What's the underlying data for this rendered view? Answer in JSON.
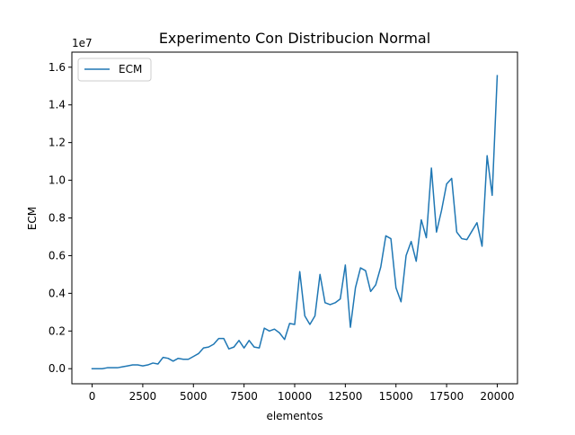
{
  "chart_data": {
    "type": "line",
    "title": "Experimento Con Distribucion Normal",
    "xlabel": "elementos",
    "ylabel": "ECM",
    "y_offset_label": "1e7",
    "xlim": [
      -1000,
      21000
    ],
    "ylim": [
      -800000,
      16800000
    ],
    "x_ticks": [
      0,
      2500,
      5000,
      7500,
      10000,
      12500,
      15000,
      17500,
      20000
    ],
    "x_tick_labels": [
      "0",
      "2500",
      "5000",
      "7500",
      "10000",
      "12500",
      "15000",
      "17500",
      "20000"
    ],
    "y_ticks": [
      0,
      2000000,
      4000000,
      6000000,
      8000000,
      10000000,
      12000000,
      14000000,
      16000000
    ],
    "y_tick_labels": [
      "0.0",
      "0.2",
      "0.4",
      "0.6",
      "0.8",
      "1.0",
      "1.2",
      "1.4",
      "1.6"
    ],
    "grid": false,
    "legend_position": "top-left",
    "series": [
      {
        "name": "ECM",
        "color": "#1f77b4",
        "x": [
          0,
          250,
          500,
          750,
          1000,
          1250,
          1500,
          1750,
          2000,
          2250,
          2500,
          2750,
          3000,
          3250,
          3500,
          3750,
          4000,
          4250,
          4500,
          4750,
          5000,
          5250,
          5500,
          5750,
          6000,
          6250,
          6500,
          6750,
          7000,
          7250,
          7500,
          7750,
          8000,
          8250,
          8500,
          8750,
          9000,
          9250,
          9500,
          9750,
          10000,
          10250,
          10500,
          10750,
          11000,
          11250,
          11500,
          11750,
          12000,
          12250,
          12500,
          12750,
          13000,
          13250,
          13500,
          13750,
          14000,
          14250,
          14500,
          14750,
          15000,
          15250,
          15500,
          15750,
          16000,
          16250,
          16500,
          16750,
          17000,
          17250,
          17500,
          17750,
          18000,
          18250,
          18500,
          18750,
          19000,
          19250,
          19500,
          19750,
          20000
        ],
        "y": [
          0,
          0,
          0,
          50000,
          50000,
          50000,
          100000,
          150000,
          200000,
          200000,
          150000,
          200000,
          300000,
          250000,
          600000,
          550000,
          400000,
          550000,
          500000,
          500000,
          650000,
          800000,
          1100000,
          1150000,
          1300000,
          1600000,
          1600000,
          1050000,
          1150000,
          1500000,
          1100000,
          1500000,
          1150000,
          1100000,
          2150000,
          2000000,
          2100000,
          1900000,
          1550000,
          2400000,
          2350000,
          5150000,
          2800000,
          2350000,
          2800000,
          5000000,
          3500000,
          3400000,
          3500000,
          3700000,
          5500000,
          2200000,
          4300000,
          5350000,
          5200000,
          4100000,
          4450000,
          5400000,
          7050000,
          6900000,
          4300000,
          3550000,
          6000000,
          6750000,
          5700000,
          7900000,
          6950000,
          10650000,
          7250000,
          8400000,
          9800000,
          10100000,
          7250000,
          6900000,
          6850000,
          7300000,
          7750000,
          6500000,
          11300000,
          9200000,
          15550000
        ]
      }
    ]
  }
}
